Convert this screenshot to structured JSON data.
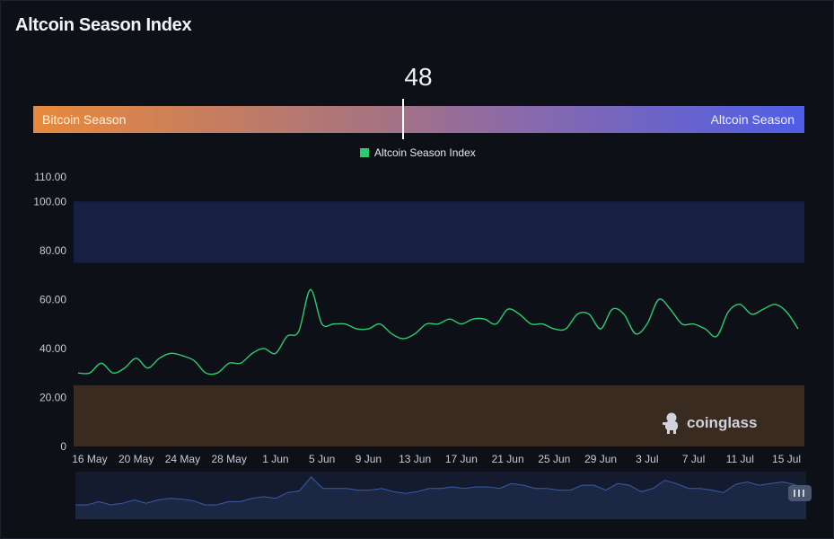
{
  "title": "Altcoin Season Index",
  "gauge": {
    "value": 48,
    "value_label": "48",
    "min": 0,
    "max": 100,
    "left_label": "Bitcoin Season",
    "right_label": "Altcoin Season"
  },
  "watermark": "coinglass",
  "chart_data": {
    "type": "line",
    "legend_position": "top",
    "ylim": [
      0,
      110
    ],
    "y_ticks": [
      "0",
      "20.00",
      "40.00",
      "60.00",
      "80.00",
      "100.00",
      "110.00"
    ],
    "x_ticks": [
      "16 May",
      "20 May",
      "24 May",
      "28 May",
      "1 Jun",
      "5 Jun",
      "9 Jun",
      "13 Jun",
      "17 Jun",
      "21 Jun",
      "25 Jun",
      "29 Jun",
      "3 Jul",
      "7 Jul",
      "11 Jul",
      "15 Jul"
    ],
    "bands": [
      {
        "from": 75,
        "to": 100,
        "color": "#172044"
      },
      {
        "from": 0,
        "to": 25,
        "color": "#3a2b20"
      }
    ],
    "series": [
      {
        "name": "Altcoin Season Index",
        "color": "#2ecc71",
        "x": [
          "15 May",
          "16 May",
          "17 May",
          "18 May",
          "19 May",
          "20 May",
          "21 May",
          "22 May",
          "23 May",
          "24 May",
          "25 May",
          "26 May",
          "27 May",
          "28 May",
          "29 May",
          "30 May",
          "31 May",
          "1 Jun",
          "2 Jun",
          "3 Jun",
          "4 Jun",
          "5 Jun",
          "6 Jun",
          "7 Jun",
          "8 Jun",
          "9 Jun",
          "10 Jun",
          "11 Jun",
          "12 Jun",
          "13 Jun",
          "14 Jun",
          "15 Jun",
          "16 Jun",
          "17 Jun",
          "18 Jun",
          "19 Jun",
          "20 Jun",
          "21 Jun",
          "22 Jun",
          "23 Jun",
          "24 Jun",
          "25 Jun",
          "26 Jun",
          "27 Jun",
          "28 Jun",
          "29 Jun",
          "30 Jun",
          "1 Jul",
          "2 Jul",
          "3 Jul",
          "4 Jul",
          "5 Jul",
          "6 Jul",
          "7 Jul",
          "8 Jul",
          "9 Jul",
          "10 Jul",
          "11 Jul",
          "12 Jul",
          "13 Jul",
          "14 Jul",
          "15 Jul",
          "16 Jul"
        ],
        "values": [
          30,
          30,
          34,
          30,
          32,
          36,
          32,
          36,
          38,
          37,
          35,
          30,
          30,
          34,
          34,
          38,
          40,
          38,
          45,
          47,
          64,
          50,
          50,
          50,
          48,
          48,
          50,
          46,
          44,
          46,
          50,
          50,
          52,
          50,
          52,
          52,
          50,
          56,
          54,
          50,
          50,
          48,
          48,
          54,
          54,
          48,
          56,
          54,
          46,
          50,
          60,
          56,
          50,
          50,
          48,
          45,
          55,
          58,
          54,
          56,
          58,
          55,
          48
        ]
      }
    ]
  }
}
